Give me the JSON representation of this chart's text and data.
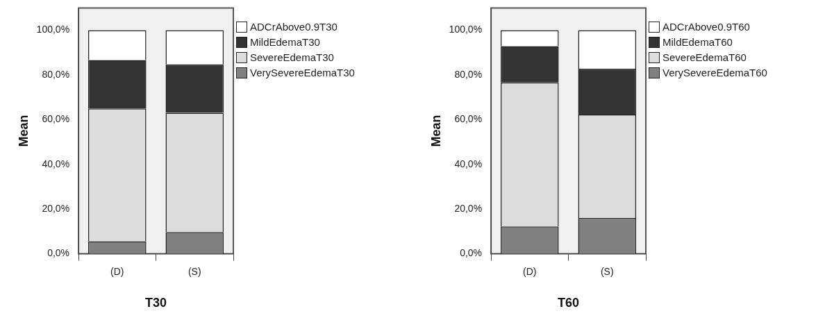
{
  "chart_data": [
    {
      "type": "bar",
      "stacked": true,
      "xlabel": "T30",
      "ylabel": "Mean",
      "categories": [
        "(D)",
        "(S)"
      ],
      "series": [
        {
          "name": "VerySevereEdemaT30",
          "color": "#808080",
          "values": [
            5.6,
            9.7
          ]
        },
        {
          "name": "SevereEdemaT30",
          "color": "#dcdcdc",
          "values": [
            59.4,
            53.4
          ]
        },
        {
          "name": "MildEdemaT30",
          "color": "#333333",
          "values": [
            21.7,
            21.6
          ]
        },
        {
          "name": "ADCrAbove0.9T30",
          "color": "#ffffff",
          "values": [
            13.3,
            15.3
          ]
        }
      ],
      "ylim": [
        0,
        110
      ],
      "yticks": [
        {
          "value": 0,
          "label": "0,0%"
        },
        {
          "value": 20,
          "label": "20,0%"
        },
        {
          "value": 40,
          "label": "40,0%"
        },
        {
          "value": 60,
          "label": "60,0%"
        },
        {
          "value": 80,
          "label": "80,0%"
        },
        {
          "value": 100,
          "label": "100,0%"
        }
      ],
      "legend": "top right"
    },
    {
      "type": "bar",
      "stacked": true,
      "xlabel": "T60",
      "ylabel": "Mean",
      "categories": [
        "(D)",
        "(S)"
      ],
      "series": [
        {
          "name": "VerySevereEdemaT60",
          "color": "#808080",
          "values": [
            12.2,
            16.0
          ]
        },
        {
          "name": "SevereEdemaT60",
          "color": "#dcdcdc",
          "values": [
            64.5,
            46.3
          ]
        },
        {
          "name": "MildEdemaT60",
          "color": "#333333",
          "values": [
            16.2,
            20.5
          ]
        },
        {
          "name": "ADCrAbove0.9T60",
          "color": "#ffffff",
          "values": [
            7.1,
            17.2
          ]
        }
      ],
      "ylim": [
        0,
        110
      ],
      "yticks": [
        {
          "value": 0,
          "label": "0,0%"
        },
        {
          "value": 20,
          "label": "20,0%"
        },
        {
          "value": 40,
          "label": "40,0%"
        },
        {
          "value": 60,
          "label": "60,0%"
        },
        {
          "value": 80,
          "label": "80,0%"
        },
        {
          "value": 100,
          "label": "100,0%"
        }
      ],
      "legend": "top right"
    }
  ]
}
